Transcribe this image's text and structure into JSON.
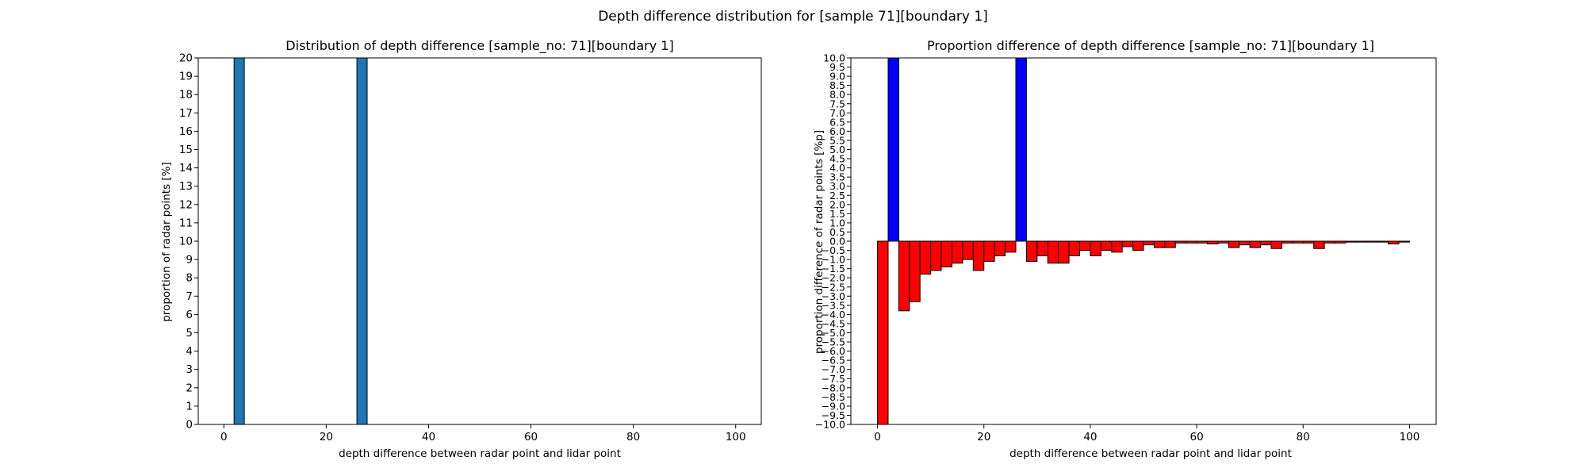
{
  "figure": {
    "suptitle": "Depth difference distribution for [sample 71][boundary 1]"
  },
  "chart_data": [
    {
      "type": "bar",
      "title": "Distribution of depth difference [sample_no: 71][boundary 1]",
      "xlabel": "depth difference between radar point and lidar point",
      "ylabel": "proportion of radar points [%]",
      "xlim": [
        -5,
        105
      ],
      "ylim": [
        0,
        20
      ],
      "x_ticks": [
        0,
        20,
        40,
        60,
        80,
        100
      ],
      "y_ticks": [
        0,
        1,
        2,
        3,
        4,
        5,
        6,
        7,
        8,
        9,
        10,
        11,
        12,
        13,
        14,
        15,
        16,
        17,
        18,
        19,
        20
      ],
      "bin_width": 2,
      "bar_color": "#1f77b4",
      "bars": [
        {
          "x": 2,
          "value": 20
        },
        {
          "x": 26,
          "value": 20
        }
      ]
    },
    {
      "type": "bar",
      "title": "Proportion difference of depth difference [sample_no: 71][boundary 1]",
      "xlabel": "depth difference between radar point and lidar point",
      "ylabel": "proportion difference of radar points [%p]",
      "xlim": [
        -5,
        105
      ],
      "ylim": [
        -10,
        10
      ],
      "x_ticks": [
        0,
        20,
        40,
        60,
        80,
        100
      ],
      "y_tick_step": 0.5,
      "bin_width": 2,
      "positive_color": "#0000ff",
      "negative_color": "#ff0000",
      "bars": [
        {
          "x": 0,
          "value": -10
        },
        {
          "x": 2,
          "value": 10
        },
        {
          "x": 4,
          "value": -3.8
        },
        {
          "x": 6,
          "value": -3.3
        },
        {
          "x": 8,
          "value": -1.8
        },
        {
          "x": 10,
          "value": -1.6
        },
        {
          "x": 12,
          "value": -1.4
        },
        {
          "x": 14,
          "value": -1.2
        },
        {
          "x": 16,
          "value": -1.0
        },
        {
          "x": 18,
          "value": -1.6
        },
        {
          "x": 20,
          "value": -1.1
        },
        {
          "x": 22,
          "value": -0.8
        },
        {
          "x": 24,
          "value": -0.6
        },
        {
          "x": 26,
          "value": 10
        },
        {
          "x": 28,
          "value": -1.1
        },
        {
          "x": 30,
          "value": -0.8
        },
        {
          "x": 32,
          "value": -1.2
        },
        {
          "x": 34,
          "value": -1.2
        },
        {
          "x": 36,
          "value": -0.8
        },
        {
          "x": 38,
          "value": -0.5
        },
        {
          "x": 40,
          "value": -0.8
        },
        {
          "x": 42,
          "value": -0.5
        },
        {
          "x": 44,
          "value": -0.6
        },
        {
          "x": 46,
          "value": -0.3
        },
        {
          "x": 48,
          "value": -0.5
        },
        {
          "x": 50,
          "value": -0.2
        },
        {
          "x": 52,
          "value": -0.35
        },
        {
          "x": 54,
          "value": -0.35
        },
        {
          "x": 56,
          "value": -0.1
        },
        {
          "x": 58,
          "value": -0.1
        },
        {
          "x": 60,
          "value": -0.1
        },
        {
          "x": 62,
          "value": -0.15
        },
        {
          "x": 64,
          "value": -0.1
        },
        {
          "x": 66,
          "value": -0.35
        },
        {
          "x": 68,
          "value": -0.2
        },
        {
          "x": 70,
          "value": -0.35
        },
        {
          "x": 72,
          "value": -0.2
        },
        {
          "x": 74,
          "value": -0.4
        },
        {
          "x": 76,
          "value": -0.1
        },
        {
          "x": 78,
          "value": -0.1
        },
        {
          "x": 80,
          "value": -0.1
        },
        {
          "x": 82,
          "value": -0.4
        },
        {
          "x": 84,
          "value": -0.1
        },
        {
          "x": 86,
          "value": -0.1
        },
        {
          "x": 88,
          "value": -0.05
        },
        {
          "x": 90,
          "value": -0.05
        },
        {
          "x": 92,
          "value": -0.05
        },
        {
          "x": 94,
          "value": -0.05
        },
        {
          "x": 96,
          "value": -0.15
        },
        {
          "x": 98,
          "value": -0.05
        }
      ]
    }
  ]
}
